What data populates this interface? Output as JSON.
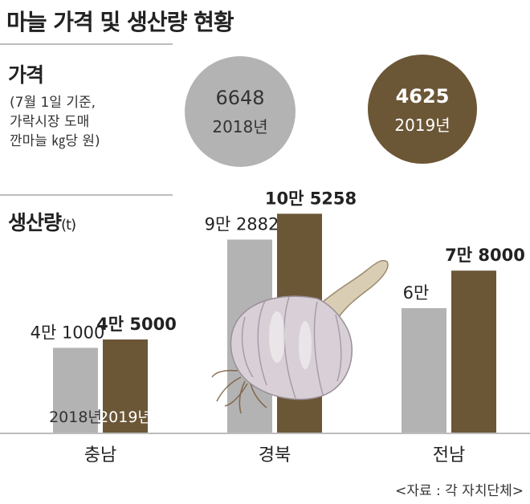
{
  "title": "마늘 가격 및 생산량 현황",
  "price": {
    "heading": "가격",
    "note": "(7월 1일 기준,\n가락시장 도매\n깐마늘 ㎏당 원)",
    "items": [
      {
        "value": "6648",
        "year": "2018년"
      },
      {
        "value": "4625",
        "year": "2019년"
      }
    ]
  },
  "production": {
    "heading": "생산량",
    "unit": "(t)"
  },
  "source": "<자료 : 각 자치단체>",
  "colors": {
    "y2018": "#b3b3b3",
    "y2019": "#6b5636",
    "y2019_label_text": "#ffffff"
  },
  "chart_data": {
    "type": "bar",
    "categories": [
      "충남",
      "경북",
      "전남"
    ],
    "series": [
      {
        "name": "2018년",
        "values": [
          41000,
          92882,
          60000
        ],
        "labels": [
          "4만 1000",
          "9만 2882",
          "6만"
        ]
      },
      {
        "name": "2019년",
        "values": [
          45000,
          105258,
          78000
        ],
        "labels": [
          "4만 5000",
          "10만 5258",
          "7만 8000"
        ]
      }
    ],
    "ylim": [
      0,
      110000
    ],
    "grid": false,
    "legend": "inside-bars-first-group"
  }
}
